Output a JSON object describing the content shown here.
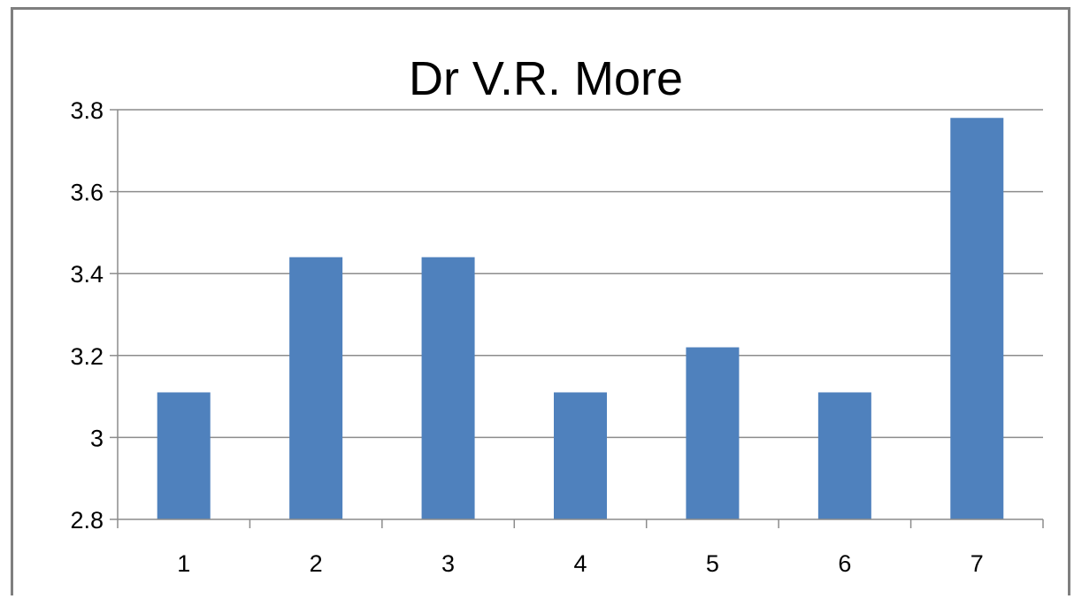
{
  "chart_data": {
    "type": "bar",
    "title": "Dr V.R. More",
    "categories": [
      "1",
      "2",
      "3",
      "4",
      "5",
      "6",
      "7"
    ],
    "values": [
      3.11,
      3.44,
      3.44,
      3.11,
      3.22,
      3.11,
      3.78
    ],
    "ylim": [
      2.8,
      3.8
    ],
    "yticks": [
      "2.8",
      "3",
      "3.2",
      "3.4",
      "3.6",
      "3.8"
    ],
    "xlabel": "",
    "ylabel": "",
    "grid": true,
    "legend": "none",
    "colors": {
      "bar": "#4f81bd",
      "grid": "#8c8c8c",
      "axis": "#8c8c8c",
      "frame": "#7f7f7f"
    }
  }
}
